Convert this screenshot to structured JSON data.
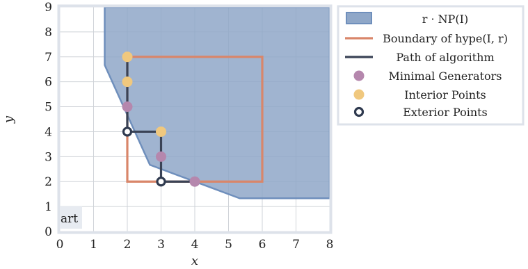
{
  "chart_data": {
    "type": "line",
    "xlabel": "x",
    "ylabel": "y",
    "xlim": [
      0,
      8
    ],
    "ylim": [
      0,
      9
    ],
    "x_ticks": [
      "0",
      "1",
      "2",
      "3",
      "4",
      "5",
      "6",
      "7",
      "8"
    ],
    "y_ticks": [
      "0",
      "1",
      "2",
      "3",
      "4",
      "5",
      "6",
      "7",
      "8",
      "9"
    ],
    "grid": true,
    "legend_placement": "outside-top-right",
    "corner_label": "art",
    "series": [
      {
        "name": "r · NP(I)",
        "kind": "filled-region",
        "color": "#8fa7c8",
        "edge_color": "#6f8fbc",
        "points": [
          [
            1.33,
            9
          ],
          [
            1.33,
            6.67
          ],
          [
            2.67,
            2.67
          ],
          [
            5.33,
            1.33
          ],
          [
            8,
            1.33
          ],
          [
            8,
            9
          ]
        ]
      },
      {
        "name": "Boundary of hype(I, r)",
        "kind": "line",
        "color": "#d9866a",
        "points": [
          [
            2,
            7
          ],
          [
            6,
            7
          ],
          [
            6,
            2
          ],
          [
            2,
            2
          ],
          [
            2,
            7
          ]
        ]
      },
      {
        "name": "Path of algorithm",
        "kind": "line",
        "color": "#3a4356",
        "points": [
          [
            2,
            7
          ],
          [
            2,
            4
          ],
          [
            3,
            4
          ],
          [
            3,
            2
          ],
          [
            4,
            2
          ]
        ]
      },
      {
        "name": "Minimal Generators",
        "kind": "scatter",
        "color": "#b587ad",
        "points": [
          [
            2,
            5
          ],
          [
            3,
            3
          ],
          [
            4,
            2
          ]
        ]
      },
      {
        "name": "Interior Points",
        "kind": "scatter",
        "color": "#f0c87e",
        "points": [
          [
            2,
            7
          ],
          [
            2,
            6
          ],
          [
            3,
            4
          ]
        ]
      },
      {
        "name": "Exterior Points",
        "kind": "scatter-hollow",
        "color": "#2f3a4f",
        "points": [
          [
            2,
            4
          ],
          [
            3,
            2
          ]
        ]
      }
    ]
  }
}
